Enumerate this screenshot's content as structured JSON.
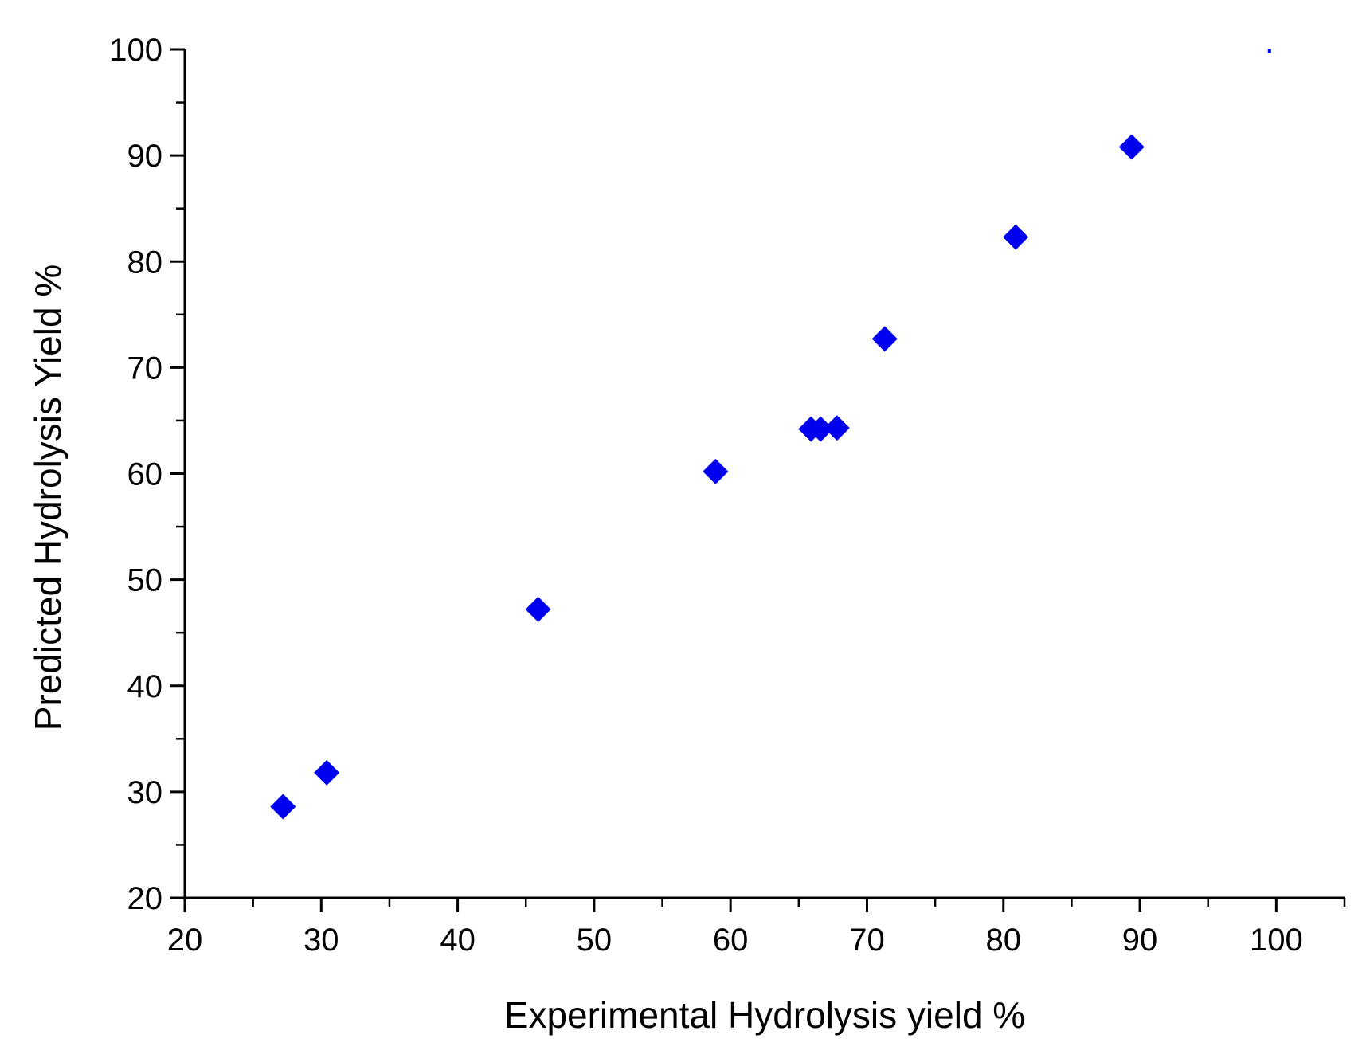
{
  "chart_data": {
    "type": "scatter",
    "title": "",
    "xlabel": "Experimental Hydrolysis yield %",
    "ylabel": "Predicted Hydrolysis Yield %",
    "xlim": [
      20,
      105
    ],
    "ylim": [
      20,
      100
    ],
    "x_ticks": [
      20,
      30,
      40,
      50,
      60,
      70,
      80,
      90,
      100
    ],
    "y_ticks": [
      20,
      30,
      40,
      50,
      60,
      70,
      80,
      90,
      100
    ],
    "grid": false,
    "marker": "diamond",
    "marker_color": "#0000ee",
    "series": [
      {
        "x": [
          27.2,
          30.4,
          45.9,
          58.9,
          65.9,
          66.6,
          67.8,
          71.3,
          80.9,
          89.4,
          99.5
        ],
        "y": [
          28.6,
          31.8,
          47.2,
          60.2,
          64.2,
          64.2,
          64.3,
          72.7,
          82.3,
          90.8,
          100
        ]
      }
    ]
  }
}
